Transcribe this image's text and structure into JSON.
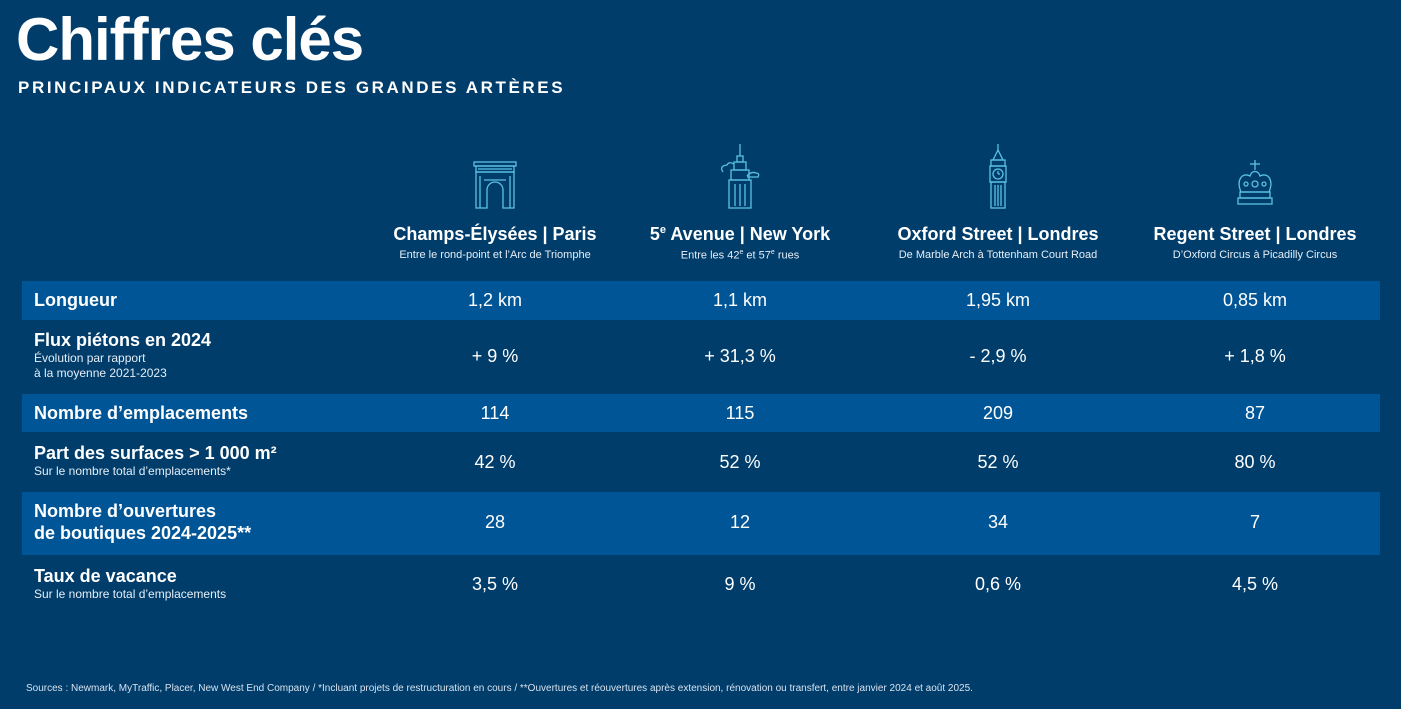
{
  "title": "Chiffres clés",
  "subtitle": "PRINCIPAUX INDICATEURS DES GRANDES ARTÈRES",
  "columns": [
    {
      "icon": "arc-de-triomphe-icon",
      "name": "Champs-Élysées | Paris",
      "desc": "Entre le rond-point et l’Arc de Triomphe"
    },
    {
      "icon": "empire-state-building-icon",
      "name": "5e Avenue | New York",
      "desc": "Entre les 42e et 57e rues"
    },
    {
      "icon": "big-ben-icon",
      "name": "Oxford Street | Londres",
      "desc": "De Marble Arch à Tottenham Court Road"
    },
    {
      "icon": "crown-icon",
      "name": "Regent Street | Londres",
      "desc": "D’Oxford Circus à Picadilly Circus"
    }
  ],
  "rows": [
    {
      "label": "Longueur",
      "sub": "",
      "values": [
        "1,2 km",
        "1,1 km",
        "1,95 km",
        "0,85 km"
      ]
    },
    {
      "label": "Flux piétons en 2024",
      "sub": "Évolution par rapport",
      "sub2": "à la moyenne 2021-2023",
      "values": [
        "+ 9 %",
        "+ 31,3 %",
        "- 2,9 %",
        "+ 1,8 %"
      ]
    },
    {
      "label": "Nombre d’emplacements",
      "sub": "",
      "values": [
        "114",
        "115",
        "209",
        "87"
      ]
    },
    {
      "label": "Part des surfaces > 1 000 m²",
      "sub": "Sur le nombre total d’emplacements*",
      "values": [
        "42 %",
        "52 %",
        "52 %",
        "80 %"
      ]
    },
    {
      "label": "Nombre d’ouvertures",
      "label2": "de boutiques 2024-2025**",
      "sub": "",
      "values": [
        "28",
        "12",
        "34",
        "7"
      ]
    },
    {
      "label": "Taux de vacance",
      "sub": "Sur le nombre total d’emplacements",
      "values": [
        "3,5 %",
        "9 %",
        "0,6 %",
        "4,5 %"
      ]
    }
  ],
  "footnote": "Sources : Newmark, MyTraffic, Placer, New West End Company / *Incluant projets de restructuration en cours / **Ouvertures et réouvertures après extension, rénovation ou transfert, entre janvier 2024 et août 2025.",
  "colors": {
    "background": "#003d6b",
    "band": "#005596",
    "icon": "#5bc2e7"
  }
}
